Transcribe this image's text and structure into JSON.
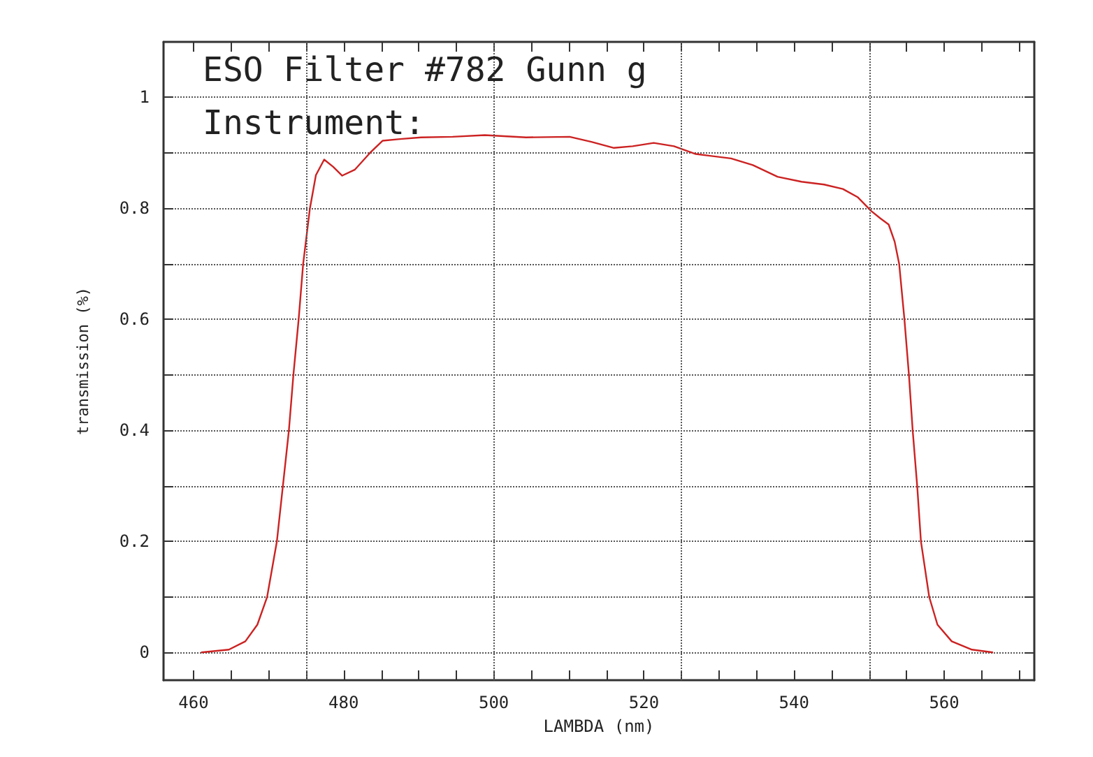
{
  "chart_data": {
    "type": "line",
    "title": "ESO Filter #782 Gunn g",
    "annotations": [
      "Instrument:"
    ],
    "xlabel": "LAMBDA (nm)",
    "ylabel": "transmission (%)",
    "xlim": [
      456,
      572
    ],
    "ylim": [
      -0.05,
      1.1
    ],
    "xticks": [
      460,
      {
        "value": 465,
        "label": null
      },
      {
        "value": 470,
        "label": null
      },
      {
        "value": 475,
        "label": null
      },
      480,
      {
        "value": 485,
        "label": null
      },
      {
        "value": 490,
        "label": null
      },
      {
        "value": 495,
        "label": null
      },
      500,
      {
        "value": 505,
        "label": null
      },
      {
        "value": 510,
        "label": null
      },
      {
        "value": 515,
        "label": null
      },
      520,
      {
        "value": 525,
        "label": null
      },
      {
        "value": 530,
        "label": null
      },
      {
        "value": 535,
        "label": null
      },
      540,
      {
        "value": 545,
        "label": null
      },
      {
        "value": 550,
        "label": null
      },
      {
        "value": 555,
        "label": null
      },
      560,
      {
        "value": 565,
        "label": null
      },
      {
        "value": 570,
        "label": null
      }
    ],
    "yticks": [
      0,
      {
        "value": 0.1,
        "label": null
      },
      0.2,
      {
        "value": 0.3,
        "label": null
      },
      0.4,
      {
        "value": 0.5,
        "label": null
      },
      0.6,
      {
        "value": 0.7,
        "label": null
      },
      0.8,
      {
        "value": 0.9,
        "label": null
      },
      1
    ],
    "grid": "y",
    "marker": "none",
    "line_style": "solid",
    "ref_lines": [
      {
        "axis": "x",
        "value": 475,
        "line_style": "dotted",
        "color": "#555555"
      },
      {
        "axis": "x",
        "value": 500,
        "line_style": "dotted",
        "color": "#555555"
      },
      {
        "axis": "x",
        "value": 525,
        "line_style": "dotted",
        "color": "#555555"
      },
      {
        "axis": "x",
        "value": 550,
        "line_style": "dotted",
        "color": "#555555"
      }
    ],
    "series": [
      {
        "color": "#cc2222",
        "x": [
          461,
          464.7,
          466.9,
          468.5,
          469.8,
          471.1,
          471.9,
          472.7,
          473.3,
          474.0,
          474.6,
          475.5,
          476.3,
          477.4,
          478.6,
          479.8,
          481.5,
          483.5,
          485.2,
          487.5,
          490.3,
          494.5,
          498.8,
          504.3,
          510.1,
          513,
          516.0,
          518.5,
          521.3,
          524,
          526.9,
          531.6,
          534.5,
          537.8,
          541,
          544.0,
          546.5,
          548.5,
          550.3,
          551.5,
          552.6,
          553.4,
          554.0,
          554.7,
          555.3,
          555.8,
          556.4,
          556.9,
          558.0,
          559.1,
          561.0,
          563.7,
          566.5
        ],
        "values": [
          0,
          0.005,
          0.02,
          0.05,
          0.1,
          0.2,
          0.3,
          0.4,
          0.5,
          0.6,
          0.7,
          0.8,
          0.86,
          0.888,
          0.875,
          0.859,
          0.87,
          0.9,
          0.922,
          0.925,
          0.928,
          0.929,
          0.932,
          0.928,
          0.929,
          0.92,
          0.909,
          0.912,
          0.918,
          0.912,
          0.898,
          0.89,
          0.878,
          0.857,
          0.848,
          0.843,
          0.835,
          0.82,
          0.795,
          0.782,
          0.771,
          0.74,
          0.7,
          0.6,
          0.5,
          0.4,
          0.3,
          0.2,
          0.1,
          0.05,
          0.02,
          0.005,
          0
        ]
      }
    ]
  }
}
